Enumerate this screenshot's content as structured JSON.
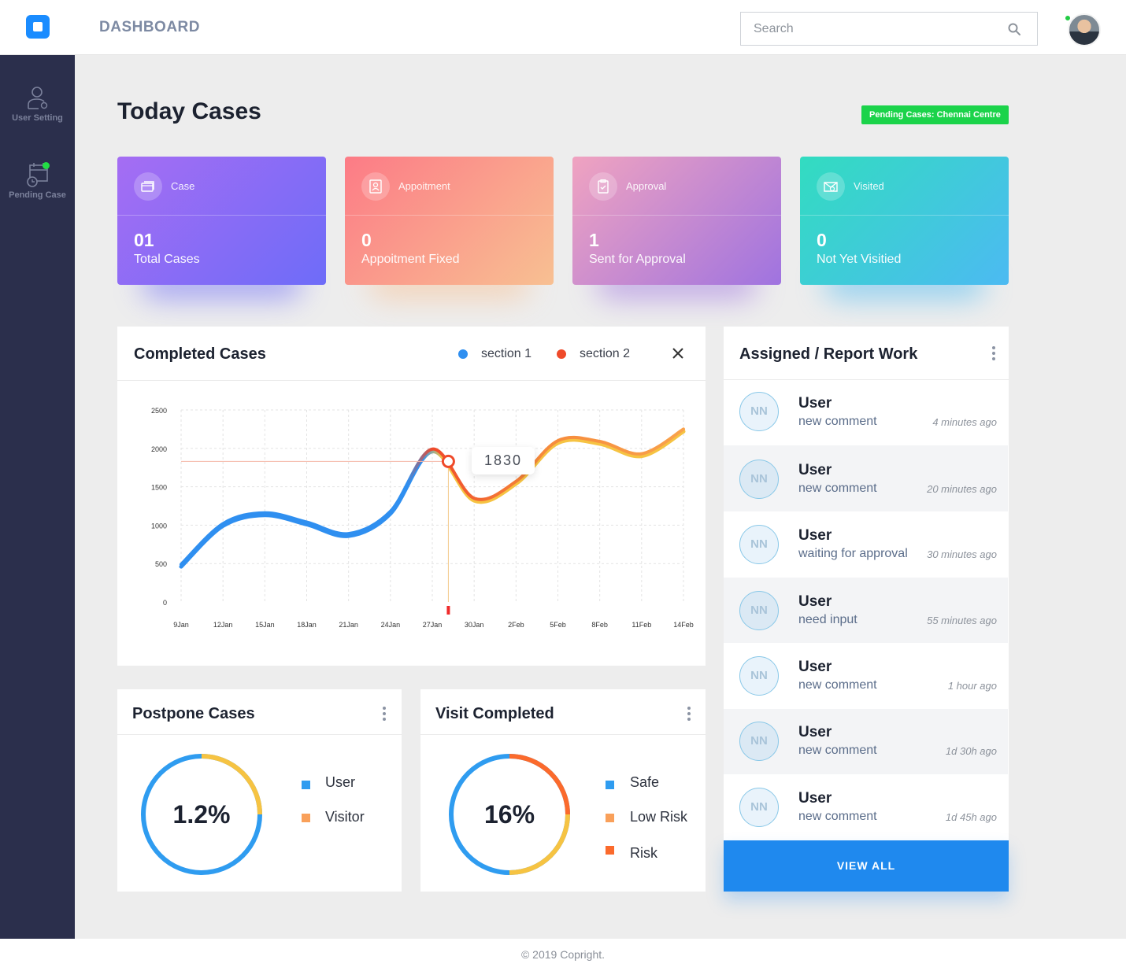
{
  "header": {
    "title": "DASHBOARD",
    "search_placeholder": "Search"
  },
  "sidebar": {
    "items": [
      {
        "label": "User Setting",
        "icon": "user-gear-icon"
      },
      {
        "label": "Pending Case",
        "icon": "calendar-clock-icon"
      }
    ]
  },
  "page": {
    "title": "Today Cases",
    "pending_badge": "Pending Cases: Chennai Centre"
  },
  "cards": [
    {
      "label": "Case",
      "value": "01",
      "desc": "Total Cases",
      "icon": "cards-icon",
      "from": "#a56df3",
      "to": "#6e6cf8"
    },
    {
      "label": "Appoitment",
      "value": "0",
      "desc": "Appoitment Fixed",
      "icon": "contact-card-icon",
      "from": "#fc7b86",
      "to": "#f8c092"
    },
    {
      "label": "Approval",
      "value": "1",
      "desc": "Sent for Approval",
      "icon": "clipboard-check-icon",
      "from": "#f0a3c0",
      "to": "#9f73e0"
    },
    {
      "label": "Visited",
      "value": "0",
      "desc": "Not Yet Visitied",
      "icon": "mail-search-icon",
      "from": "#32dcc0",
      "to": "#4cbaf2"
    }
  ],
  "completed": {
    "title": "Completed Cases",
    "legend": [
      "section 1",
      "section 2"
    ],
    "tooltip": "1830"
  },
  "chart_data": {
    "type": "line",
    "title": "Completed Cases",
    "x": [
      "9Jan",
      "12Jan",
      "15Jan",
      "18Jan",
      "21Jan",
      "24Jan",
      "27Jan",
      "30Jan",
      "2Feb",
      "5Feb",
      "8Feb",
      "11Feb",
      "14Feb"
    ],
    "yticks": [
      "2500",
      "2000",
      "1500",
      "1000",
      "500",
      "0"
    ],
    "ylim": [
      0,
      2500
    ],
    "series": [
      {
        "name": "section 1",
        "color": "#2f8ff0",
        "values": [
          480,
          1010,
          1150,
          1030,
          880,
          1170,
          1980,
          1340,
          1560,
          2090,
          2080,
          1920,
          2240
        ]
      },
      {
        "name": "section 2",
        "color": "#ef5a2a",
        "values": [
          480,
          1010,
          1150,
          1030,
          880,
          1170,
          1980,
          1340,
          1560,
          2090,
          2080,
          1920,
          2240
        ]
      }
    ],
    "highlight": {
      "value": 1830,
      "label": "1830"
    },
    "grid": true
  },
  "postpone": {
    "title": "Postpone Cases",
    "center": "1.2%",
    "legend": [
      {
        "label": "User",
        "color": "#2f9cf0"
      },
      {
        "label": "Visitor",
        "color": "#f9a05a"
      }
    ]
  },
  "visit": {
    "title": "Visit Completed",
    "center": "16%",
    "legend": [
      {
        "label": "Safe",
        "color": "#2f9cf0"
      },
      {
        "label": "Low Risk",
        "color": "#f9a05a"
      },
      {
        "label": "Risk",
        "color": "#fb6a2c"
      }
    ]
  },
  "assigned": {
    "title": "Assigned / Report Work",
    "items": [
      {
        "initials": "NN",
        "name": "User",
        "msg": "new comment",
        "time": "4 minutes ago"
      },
      {
        "initials": "NN",
        "name": "User",
        "msg": "new comment",
        "time": "20 minutes ago"
      },
      {
        "initials": "NN",
        "name": "User",
        "msg": "waiting for approval",
        "time": "30 minutes ago"
      },
      {
        "initials": "NN",
        "name": "User",
        "msg": "need input",
        "time": "55 minutes ago"
      },
      {
        "initials": "NN",
        "name": "User",
        "msg": "new comment",
        "time": "1 hour ago"
      },
      {
        "initials": "NN",
        "name": "User",
        "msg": "new comment",
        "time": "1d 30h ago"
      },
      {
        "initials": "NN",
        "name": "User",
        "msg": "new comment",
        "time": "1d 45h  ago"
      }
    ],
    "view_all": "VIEW ALL"
  },
  "footer": {
    "text": "© 2019 Copright."
  }
}
